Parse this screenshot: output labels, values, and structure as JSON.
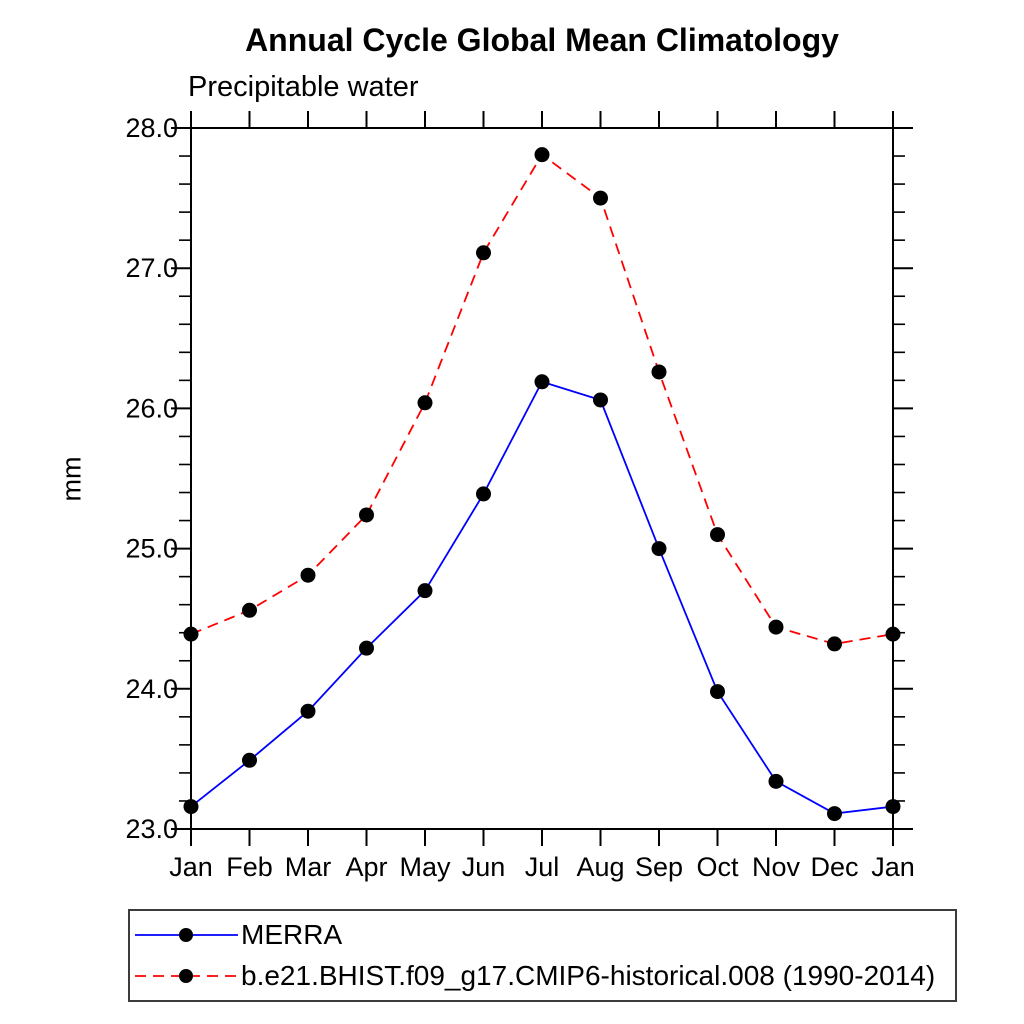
{
  "chart_data": {
    "type": "line",
    "title": "Annual Cycle Global Mean Climatology",
    "subtitle": "Precipitable water",
    "ylabel": "mm",
    "xlabel": "",
    "x_categories": [
      "Jan",
      "Feb",
      "Mar",
      "Apr",
      "May",
      "Jun",
      "Jul",
      "Aug",
      "Sep",
      "Oct",
      "Nov",
      "Dec",
      "Jan"
    ],
    "ylim": [
      23.0,
      28.0
    ],
    "y_major_tick_labels": [
      "23.0",
      "24.0",
      "25.0",
      "26.0",
      "27.0",
      "28.0"
    ],
    "y_minor_step": 0.2,
    "grid": false,
    "legend_position": "bottom-left framed box",
    "marker": {
      "shape": "circle",
      "color": "#000000",
      "radius": 7.5
    },
    "axis_color": "#000000",
    "series": [
      {
        "name": "MERRA",
        "color": "#0000ff",
        "line_style": "solid",
        "values": [
          23.16,
          23.49,
          23.84,
          24.29,
          24.7,
          25.39,
          26.19,
          26.06,
          25.0,
          23.98,
          23.34,
          23.11,
          23.16
        ]
      },
      {
        "name": "b.e21.BHIST.f09_g17.CMIP6-historical.008 (1990-2014)",
        "color": "#ff0000",
        "line_style": "dashed",
        "values": [
          24.39,
          24.56,
          24.81,
          25.24,
          26.04,
          27.11,
          27.81,
          27.5,
          26.26,
          25.1,
          24.44,
          24.32,
          24.39
        ]
      }
    ]
  }
}
